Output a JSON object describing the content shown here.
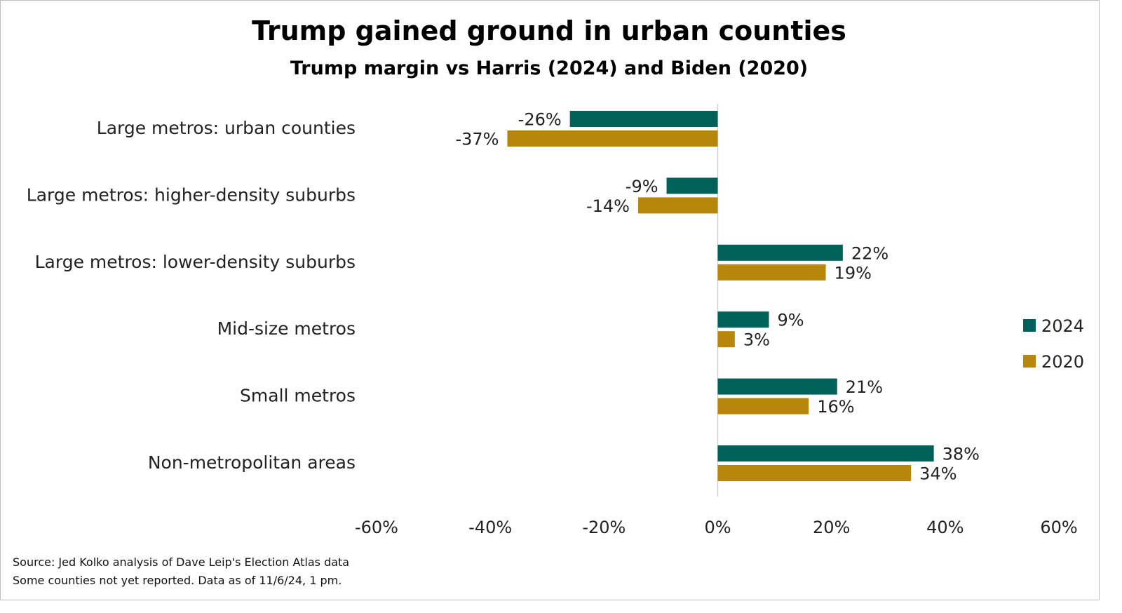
{
  "chart_data": {
    "type": "bar",
    "orientation": "horizontal",
    "title": "Trump gained ground in urban counties",
    "subtitle": "Trump margin vs Harris (2024) and Biden (2020)",
    "categories": [
      "Large metros: urban counties",
      "Large metros: higher-density suburbs",
      "Large metros: lower-density suburbs",
      "Mid-size metros",
      "Small metros",
      "Non-metropolitan areas"
    ],
    "series": [
      {
        "name": "2024",
        "color": "#00605A",
        "values": [
          -26,
          -9,
          22,
          9,
          21,
          38
        ]
      },
      {
        "name": "2020",
        "color": "#B8860B",
        "values": [
          -37,
          -14,
          19,
          3,
          16,
          34
        ]
      }
    ],
    "xlim": [
      -60,
      60
    ],
    "xticks": [
      -60,
      -40,
      -20,
      0,
      20,
      40,
      60
    ],
    "tick_format": "percent",
    "grid": false,
    "legend": "right",
    "xlabel": "",
    "ylabel": ""
  },
  "source": [
    "Source: Jed Kolko analysis of Dave Leip's Election Atlas data",
    "Some counties not yet reported. Data as of 11/6/24, 1 pm."
  ]
}
